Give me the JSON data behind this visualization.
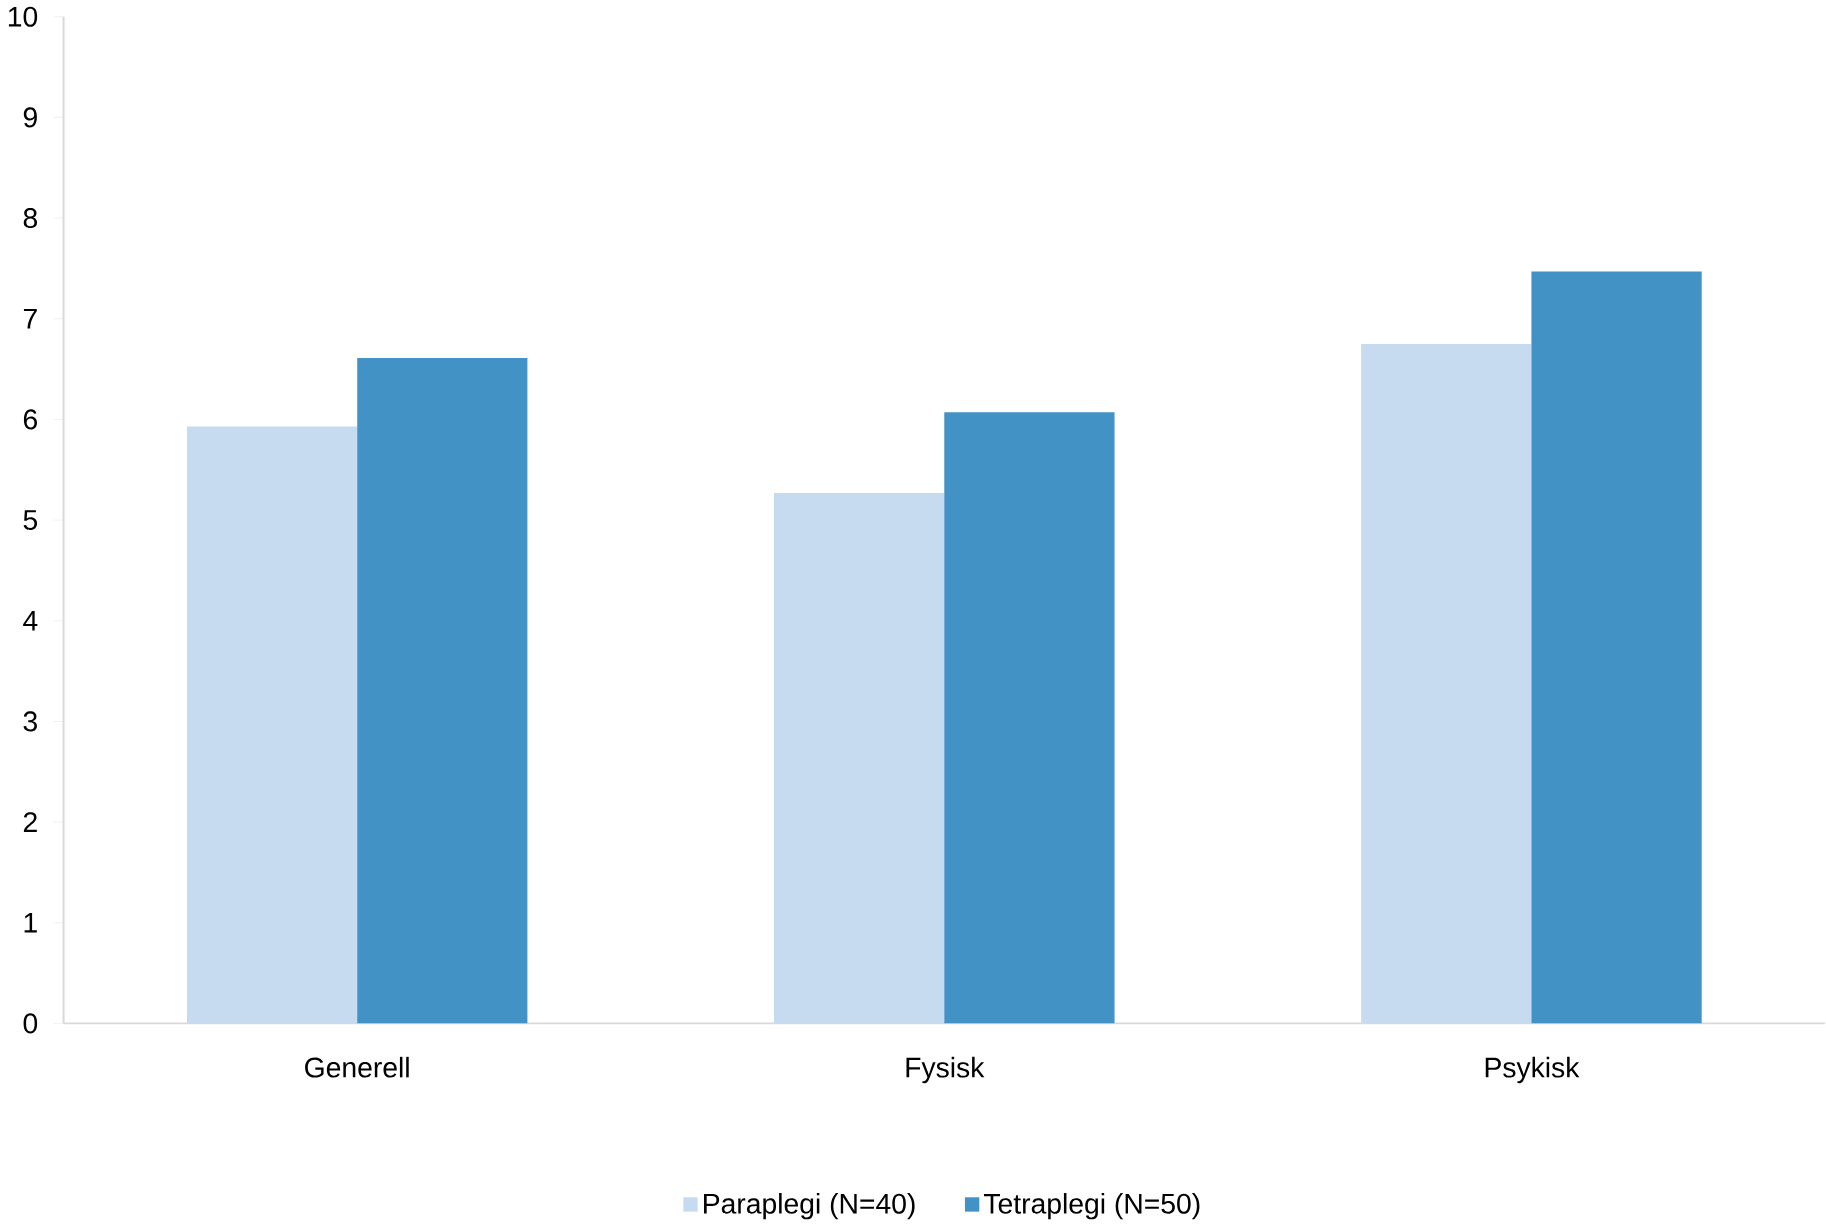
{
  "chart_data": {
    "type": "bar",
    "categories": [
      "Generell",
      "Fysisk",
      "Psykisk"
    ],
    "series": [
      {
        "name": "Paraplegi (N=40)",
        "color": "#c6dbef",
        "values": [
          5.93,
          5.27,
          6.75
        ]
      },
      {
        "name": "Tetraplegi (N=50)",
        "color": "#4292c6",
        "values": [
          6.61,
          6.07,
          7.47
        ]
      }
    ],
    "ylim": [
      0,
      10
    ],
    "yticks": [
      0,
      1,
      2,
      3,
      4,
      5,
      6,
      7,
      8,
      9,
      10
    ],
    "grid": false,
    "legend": "bottom"
  }
}
